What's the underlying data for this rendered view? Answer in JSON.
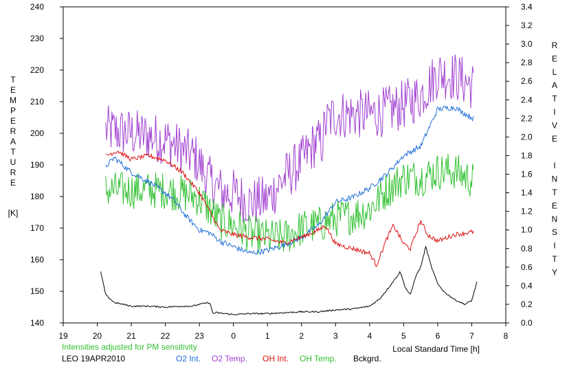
{
  "chart_data": {
    "type": "line",
    "left_axis": {
      "label_letters": [
        "T",
        "E",
        "M",
        "P",
        "E",
        "R",
        "A",
        "T",
        "U",
        "R",
        "E"
      ],
      "unit": "[K]",
      "ylim": [
        140,
        240
      ],
      "ticks": [
        "140",
        "150",
        "160",
        "170",
        "180",
        "190",
        "200",
        "210",
        "220",
        "230",
        "240"
      ]
    },
    "right_axis": {
      "label_words": [
        [
          "R",
          "E",
          "L",
          "A",
          "T",
          "I",
          "V",
          "E"
        ],
        [
          "I",
          "N",
          "T",
          "E",
          "N",
          "S",
          "I",
          "T",
          "Y"
        ]
      ],
      "ylim": [
        0.0,
        3.4
      ],
      "ticks": [
        "0.0",
        "0.2",
        "0.4",
        "0.6",
        "0.8",
        "1.0",
        "1.2",
        "1.4",
        "1.6",
        "1.8",
        "2.0",
        "2.2",
        "2.4",
        "2.6",
        "2.8",
        "3.0",
        "3.2",
        "3.4"
      ]
    },
    "x_axis": {
      "label": "Local Standard Time [h]",
      "ticks": [
        "19",
        "20",
        "21",
        "22",
        "23",
        "0",
        "1",
        "2",
        "3",
        "4",
        "5",
        "6",
        "7",
        "8"
      ]
    },
    "note": "Intensities adjusted for PM sensitivity",
    "station": "LEO 19APR2010",
    "legend": [
      {
        "label": "O2 Int.",
        "color": "#1f6fd8"
      },
      {
        "label": "O2 Temp.",
        "color": "#a040d0"
      },
      {
        "label": "OH Int.",
        "color": "#e01010"
      },
      {
        "label": "OH Temp.",
        "color": "#30c030"
      },
      {
        "label": "Bckgrd.",
        "color": "#000000"
      }
    ],
    "series": [
      {
        "name": "O2 Temp.",
        "axis": "temperature",
        "color": "#a040d0",
        "noise": 8,
        "x": [
          20.25,
          21,
          22,
          22.9,
          23.3,
          23.7,
          0,
          0.5,
          1,
          1.5,
          2,
          2.4,
          2.6,
          2.7,
          3,
          3.5,
          4,
          4.5,
          5,
          5.5,
          6,
          6.5,
          7.05
        ],
        "y": [
          201,
          200,
          198,
          192,
          185,
          181,
          181,
          178,
          179,
          186,
          191,
          197,
          197,
          203,
          206,
          206,
          206,
          207,
          209,
          212,
          219,
          218,
          215
        ]
      },
      {
        "name": "OH Temp.",
        "axis": "temperature",
        "color": "#30c030",
        "noise": 6,
        "x": [
          20.25,
          21,
          22,
          22.9,
          23.3,
          23.6,
          0,
          0.5,
          1,
          1.5,
          2,
          2.5,
          3,
          3.5,
          4,
          4.5,
          5,
          5.5,
          6,
          6.5,
          7.05
        ],
        "y": [
          182,
          182,
          182,
          180,
          176,
          172,
          171,
          168,
          167,
          167,
          170,
          171,
          173,
          174,
          176,
          182,
          186,
          186,
          188,
          188,
          185
        ]
      },
      {
        "name": "O2 Int.",
        "axis": "intensity",
        "color": "#1f6fd8",
        "noise": 0.03,
        "x": [
          20.25,
          20.5,
          21,
          21.5,
          22,
          22.3,
          22.6,
          23,
          23.3,
          23.6,
          0,
          0.5,
          1,
          1.5,
          2,
          2.5,
          3,
          3.5,
          4,
          4.5,
          5,
          5.5,
          6,
          6.5,
          6.8,
          7.05
        ],
        "y": [
          1.68,
          1.78,
          1.62,
          1.52,
          1.4,
          1.3,
          1.15,
          1.0,
          0.97,
          0.88,
          0.82,
          0.75,
          0.78,
          0.84,
          0.92,
          1.05,
          1.3,
          1.35,
          1.45,
          1.6,
          1.8,
          1.9,
          2.3,
          2.32,
          2.25,
          2.2
        ]
      },
      {
        "name": "OH Int.",
        "axis": "intensity",
        "color": "#e01010",
        "noise": 0.025,
        "x": [
          20.25,
          20.6,
          21,
          21.5,
          22,
          22.5,
          23,
          23.3,
          23.6,
          0,
          0.5,
          1,
          1.5,
          2,
          2.5,
          2.7,
          3,
          3.5,
          4,
          4.2,
          4.5,
          4.7,
          5,
          5.2,
          5.5,
          5.7,
          6,
          6.5,
          7.05
        ],
        "y": [
          1.8,
          1.85,
          1.76,
          1.8,
          1.75,
          1.62,
          1.4,
          1.2,
          1.0,
          0.95,
          0.92,
          0.9,
          0.86,
          0.92,
          1.0,
          1.05,
          0.85,
          0.8,
          0.75,
          0.62,
          0.9,
          1.05,
          0.85,
          0.8,
          1.1,
          0.95,
          0.88,
          0.95,
          0.98
        ]
      },
      {
        "name": "Bckgrd.",
        "axis": "intensity",
        "color": "#000000",
        "noise": 0.008,
        "x": [
          20.1,
          20.25,
          20.5,
          21,
          21.5,
          22,
          22.5,
          22.8,
          23,
          23.3,
          23.4,
          23.5,
          0,
          0.5,
          1,
          1.5,
          2,
          2.5,
          3,
          3.5,
          4,
          4.3,
          4.6,
          4.8,
          4.9,
          5.05,
          5.2,
          5.35,
          5.5,
          5.65,
          5.8,
          6,
          6.2,
          6.5,
          6.8,
          7.0,
          7.15
        ],
        "y": [
          0.55,
          0.3,
          0.22,
          0.18,
          0.18,
          0.17,
          0.18,
          0.18,
          0.2,
          0.22,
          0.1,
          0.11,
          0.09,
          0.1,
          0.1,
          0.11,
          0.12,
          0.12,
          0.14,
          0.15,
          0.18,
          0.26,
          0.4,
          0.5,
          0.55,
          0.38,
          0.3,
          0.5,
          0.6,
          0.82,
          0.62,
          0.42,
          0.33,
          0.25,
          0.2,
          0.24,
          0.44
        ]
      }
    ]
  }
}
